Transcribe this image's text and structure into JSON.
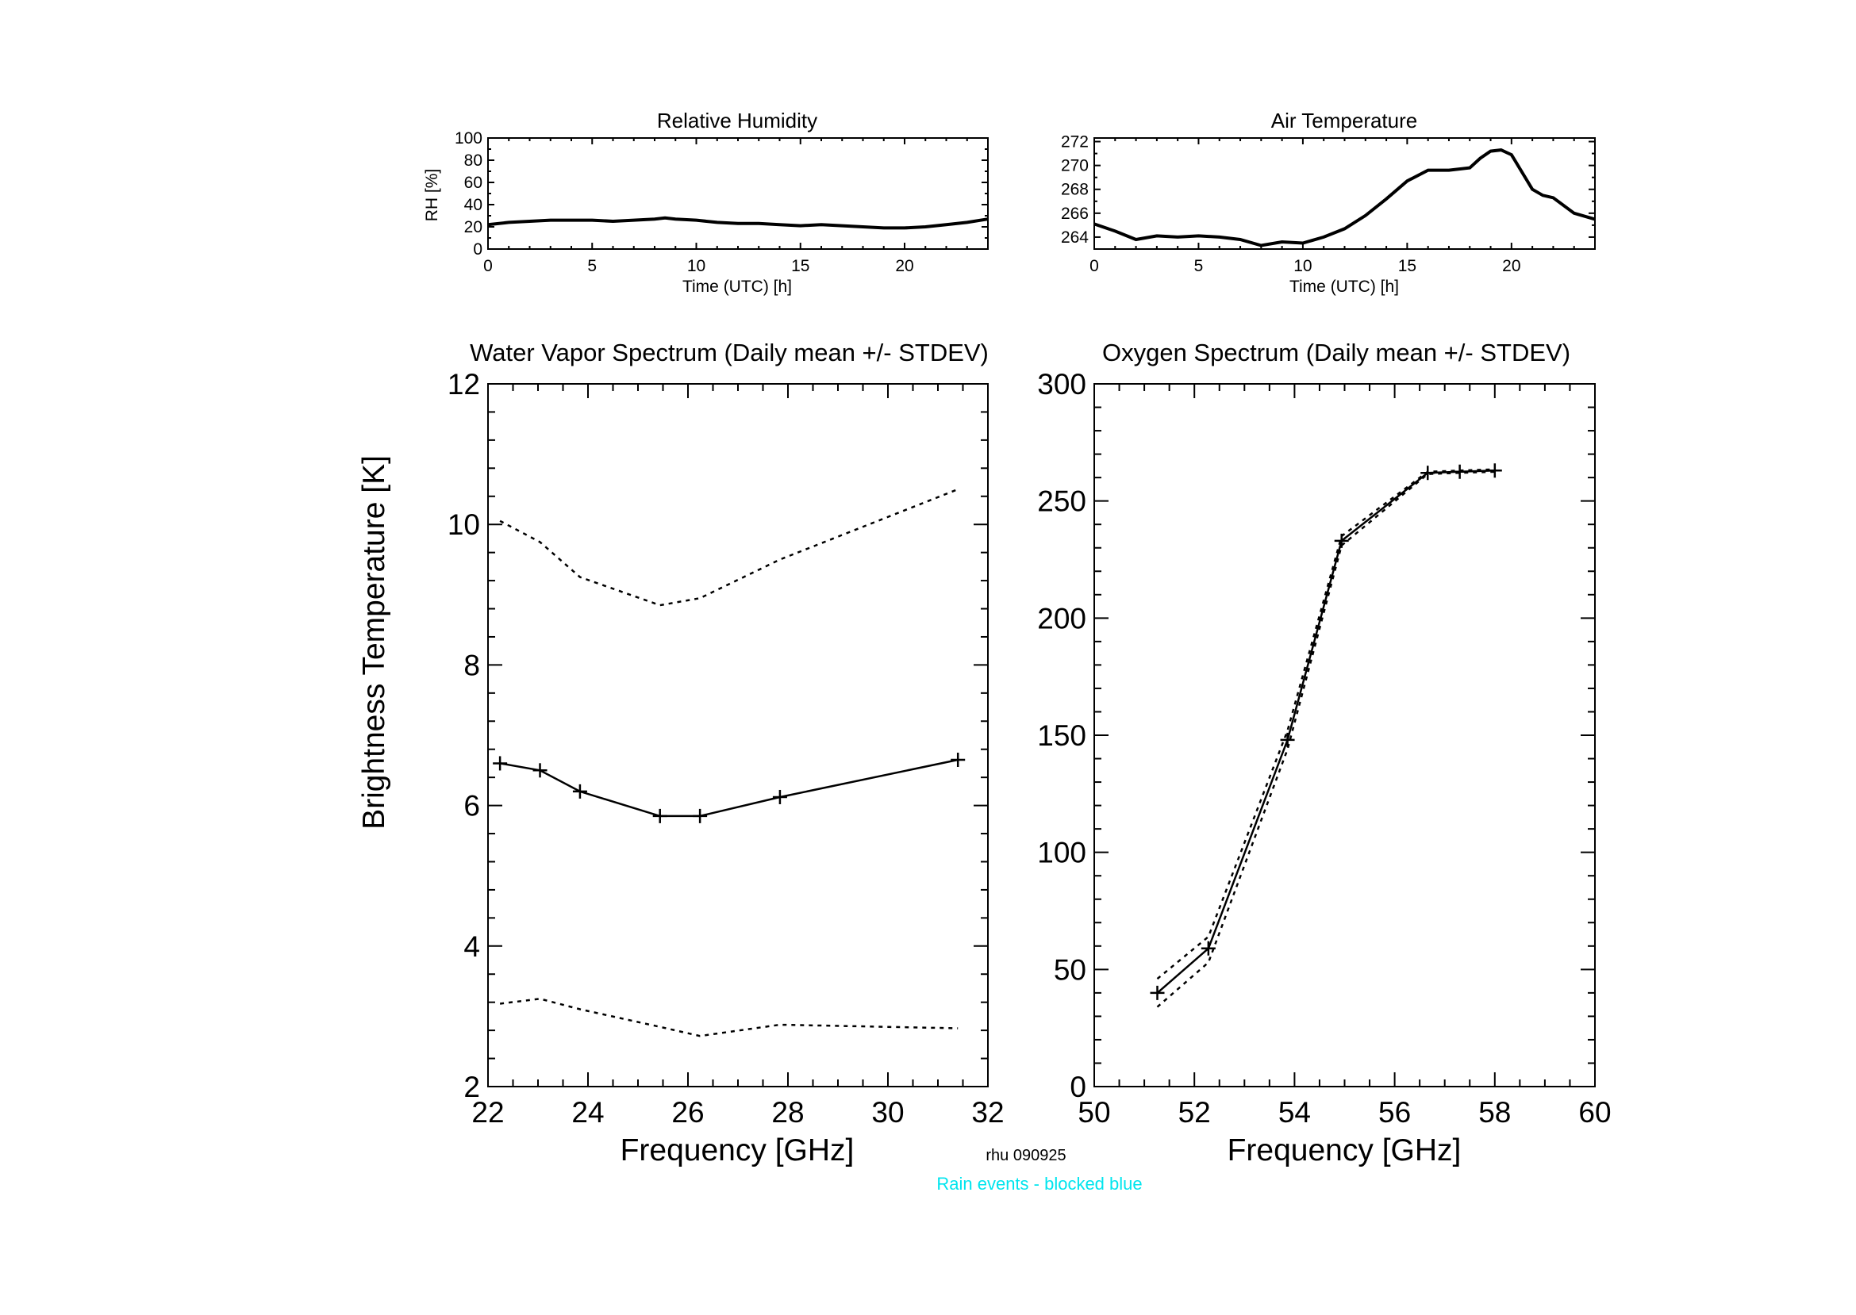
{
  "footer": {
    "station_label": "rhu 090925",
    "rain_note": "Rain events - blocked blue",
    "rain_note_color": "#00e5ee"
  },
  "chart_data": [
    {
      "id": "rh",
      "type": "line",
      "title": "Relative Humidity",
      "xlabel": "Time (UTC) [h]",
      "ylabel": "RH [%]",
      "xlim": [
        0,
        24
      ],
      "ylim": [
        0,
        100
      ],
      "xticks": [
        0,
        5,
        10,
        15,
        20
      ],
      "yticks": [
        0,
        20,
        40,
        60,
        80,
        100
      ],
      "grid": false,
      "series": [
        {
          "x": [
            0,
            1,
            2,
            3,
            4,
            5,
            6,
            7,
            8,
            8.5,
            9,
            10,
            11,
            12,
            13,
            14,
            15,
            16,
            17,
            18,
            19,
            20,
            21,
            22,
            23,
            24
          ],
          "y": [
            22,
            24,
            25,
            26,
            26,
            26,
            25,
            26,
            27,
            28,
            27,
            26,
            24,
            23,
            23,
            22,
            21,
            22,
            21,
            20,
            19,
            19,
            20,
            22,
            24,
            27
          ]
        }
      ]
    },
    {
      "id": "temp",
      "type": "line",
      "title": "Air Temperature",
      "xlim": [
        0,
        24
      ],
      "ylim": [
        263,
        272.3
      ],
      "xticks": [
        0,
        5,
        10,
        15,
        20
      ],
      "yticks": [
        264,
        266,
        268,
        270,
        272
      ],
      "grid": false,
      "series": [
        {
          "x": [
            0,
            1,
            2,
            3,
            4,
            5,
            6,
            7,
            8,
            9,
            10,
            11,
            12,
            13,
            14,
            15,
            16,
            17,
            18,
            18.5,
            19,
            19.5,
            20,
            21,
            21.5,
            22,
            23,
            24
          ],
          "y": [
            265.1,
            264.5,
            263.8,
            264.1,
            264.0,
            264.1,
            264.0,
            263.8,
            263.3,
            263.6,
            263.5,
            264.0,
            264.7,
            265.8,
            267.2,
            268.7,
            269.6,
            269.6,
            269.8,
            270.6,
            271.2,
            271.3,
            270.9,
            268.0,
            267.5,
            267.3,
            266.0,
            265.5
          ]
        }
      ]
    },
    {
      "id": "water-vapor",
      "type": "line",
      "title": "Water Vapor Spectrum (Daily mean +/- STDEV)",
      "xlabel": "Frequency [GHz]",
      "ylabel": "Brightness Temperature [K]",
      "xlim": [
        22,
        32
      ],
      "ylim": [
        2,
        12
      ],
      "xticks": [
        22,
        24,
        26,
        28,
        30,
        32
      ],
      "yticks": [
        2,
        4,
        6,
        8,
        10,
        12
      ],
      "grid": false,
      "series": [
        {
          "role": "mean",
          "x": [
            22.24,
            23.04,
            23.84,
            25.44,
            26.24,
            27.84,
            31.4
          ],
          "y": [
            6.6,
            6.5,
            6.2,
            5.85,
            5.85,
            6.12,
            6.65
          ]
        },
        {
          "role": "upper",
          "x": [
            22.24,
            23.04,
            23.84,
            25.44,
            26.24,
            27.84,
            31.4
          ],
          "y": [
            10.05,
            9.75,
            9.25,
            8.85,
            8.95,
            9.5,
            10.5
          ]
        },
        {
          "role": "lower",
          "x": [
            22.24,
            23.04,
            23.84,
            25.44,
            26.24,
            27.84,
            31.4
          ],
          "y": [
            3.18,
            3.25,
            3.1,
            2.85,
            2.72,
            2.88,
            2.83
          ]
        }
      ]
    },
    {
      "id": "oxygen",
      "type": "line",
      "title": "Oxygen Spectrum (Daily mean +/- STDEV)",
      "xlabel": "Frequency [GHz]",
      "xlim": [
        50,
        60
      ],
      "ylim": [
        0,
        300
      ],
      "xticks": [
        50,
        52,
        54,
        56,
        58,
        60
      ],
      "yticks": [
        0,
        50,
        100,
        150,
        200,
        250,
        300
      ],
      "grid": false,
      "series": [
        {
          "role": "mean",
          "x": [
            51.26,
            52.28,
            53.86,
            54.94,
            56.66,
            57.3,
            58.0
          ],
          "y": [
            40,
            59,
            148,
            233,
            262,
            262.5,
            263
          ]
        },
        {
          "role": "upper",
          "x": [
            51.26,
            52.28,
            53.86,
            54.94,
            56.66,
            57.3,
            58.0
          ],
          "y": [
            46,
            64,
            152,
            235,
            262.5,
            263,
            263.5
          ]
        },
        {
          "role": "lower",
          "x": [
            51.26,
            52.28,
            53.86,
            54.94,
            56.66,
            57.3,
            58.0
          ],
          "y": [
            34,
            53,
            144,
            231,
            261.5,
            262,
            262.5
          ]
        }
      ]
    }
  ]
}
